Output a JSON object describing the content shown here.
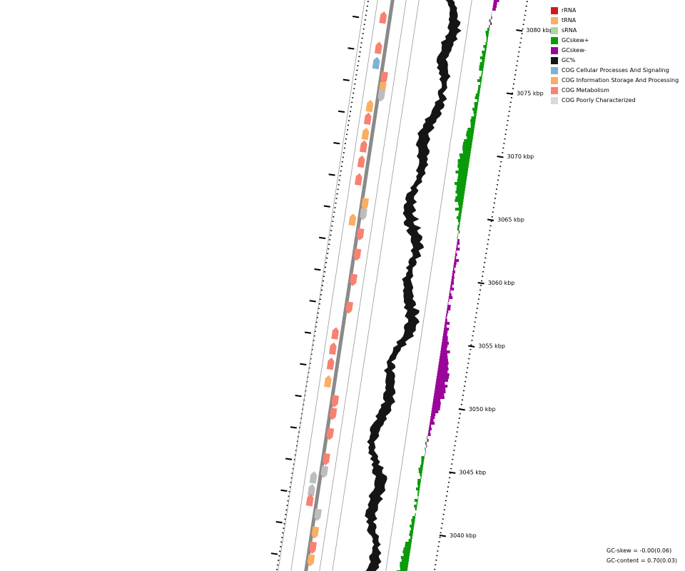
{
  "legend": [
    {
      "label": "rRNA",
      "color": "#d0181c"
    },
    {
      "label": "tRNA",
      "color": "#fbad62"
    },
    {
      "label": "sRNA",
      "color": "#a8d89e"
    },
    {
      "label": "GCskew+",
      "color": "#0a9a0a"
    },
    {
      "label": "GCskew-",
      "color": "#9a069a"
    },
    {
      "label": "GC%",
      "color": "#151515"
    },
    {
      "label": "COG Cellular Processes And Signaling",
      "color": "#7eb1d5"
    },
    {
      "label": "COG Information Storage And Processing",
      "color": "#fbad62"
    },
    {
      "label": "COG Metabolism",
      "color": "#f78272"
    },
    {
      "label": "COG Poorly Characterized",
      "color": "#d9d9d9"
    }
  ],
  "ticks": [
    {
      "label": "3040 kbp",
      "kbp": 3040
    },
    {
      "label": "3045 kbp",
      "kbp": 3045
    },
    {
      "label": "3050 kbp",
      "kbp": 3050
    },
    {
      "label": "3055 kbp",
      "kbp": 3055
    },
    {
      "label": "3060 kbp",
      "kbp": 3060
    },
    {
      "label": "3065 kbp",
      "kbp": 3065
    },
    {
      "label": "3070 kbp",
      "kbp": 3070
    },
    {
      "label": "3075 kbp",
      "kbp": 3075
    },
    {
      "label": "3080 kbp",
      "kbp": 3080
    }
  ],
  "stats": {
    "gc_skew": "GC-skew = -0.00(0.06)",
    "gc_content": "GC-content = 0.70(0.03)"
  },
  "genes": [
    {
      "kbp": 3081.0,
      "strand": "+",
      "cog": "metabolism"
    },
    {
      "kbp": 3078.6,
      "strand": "+",
      "cog": "metabolism"
    },
    {
      "kbp": 3077.4,
      "strand": "+",
      "cog": "cellular"
    },
    {
      "kbp": 3076.2,
      "strand": "-",
      "cog": "metabolism"
    },
    {
      "kbp": 3075.4,
      "strand": "-",
      "cog": "information"
    },
    {
      "kbp": 3074.8,
      "strand": "-",
      "cog": "poorly"
    },
    {
      "kbp": 3074.0,
      "strand": "+",
      "cog": "information"
    },
    {
      "kbp": 3073.0,
      "strand": "+",
      "cog": "metabolism"
    },
    {
      "kbp": 3071.8,
      "strand": "+",
      "cog": "information"
    },
    {
      "kbp": 3070.8,
      "strand": "+",
      "cog": "metabolism"
    },
    {
      "kbp": 3069.6,
      "strand": "+",
      "cog": "metabolism"
    },
    {
      "kbp": 3068.2,
      "strand": "+",
      "cog": "metabolism"
    },
    {
      "kbp": 3066.2,
      "strand": "-",
      "cog": "information"
    },
    {
      "kbp": 3065.4,
      "strand": "-",
      "cog": "poorly"
    },
    {
      "kbp": 3065.0,
      "strand": "+",
      "cog": "information"
    },
    {
      "kbp": 3063.8,
      "strand": "-",
      "cog": "metabolism"
    },
    {
      "kbp": 3062.2,
      "strand": "-",
      "cog": "metabolism"
    },
    {
      "kbp": 3060.2,
      "strand": "-",
      "cog": "metabolism"
    },
    {
      "kbp": 3058.0,
      "strand": "-",
      "cog": "metabolism"
    },
    {
      "kbp": 3056.0,
      "strand": "+",
      "cog": "metabolism"
    },
    {
      "kbp": 3054.8,
      "strand": "+",
      "cog": "metabolism"
    },
    {
      "kbp": 3053.6,
      "strand": "+",
      "cog": "metabolism"
    },
    {
      "kbp": 3052.2,
      "strand": "+",
      "cog": "information"
    },
    {
      "kbp": 3050.6,
      "strand": "-",
      "cog": "metabolism"
    },
    {
      "kbp": 3049.6,
      "strand": "-",
      "cog": "metabolism"
    },
    {
      "kbp": 3048.0,
      "strand": "-",
      "cog": "metabolism"
    },
    {
      "kbp": 3046.0,
      "strand": "-",
      "cog": "metabolism"
    },
    {
      "kbp": 3045.0,
      "strand": "-",
      "cog": "poorly"
    },
    {
      "kbp": 3044.6,
      "strand": "+",
      "cog": "poorly"
    },
    {
      "kbp": 3043.6,
      "strand": "+",
      "cog": "poorly"
    },
    {
      "kbp": 3042.8,
      "strand": "+",
      "cog": "metabolism"
    },
    {
      "kbp": 3041.6,
      "strand": "-",
      "cog": "poorly"
    },
    {
      "kbp": 3040.2,
      "strand": "-",
      "cog": "information"
    },
    {
      "kbp": 3039.0,
      "strand": "-",
      "cog": "metabolism"
    },
    {
      "kbp": 3038.0,
      "strand": "-",
      "cog": "information"
    }
  ]
}
